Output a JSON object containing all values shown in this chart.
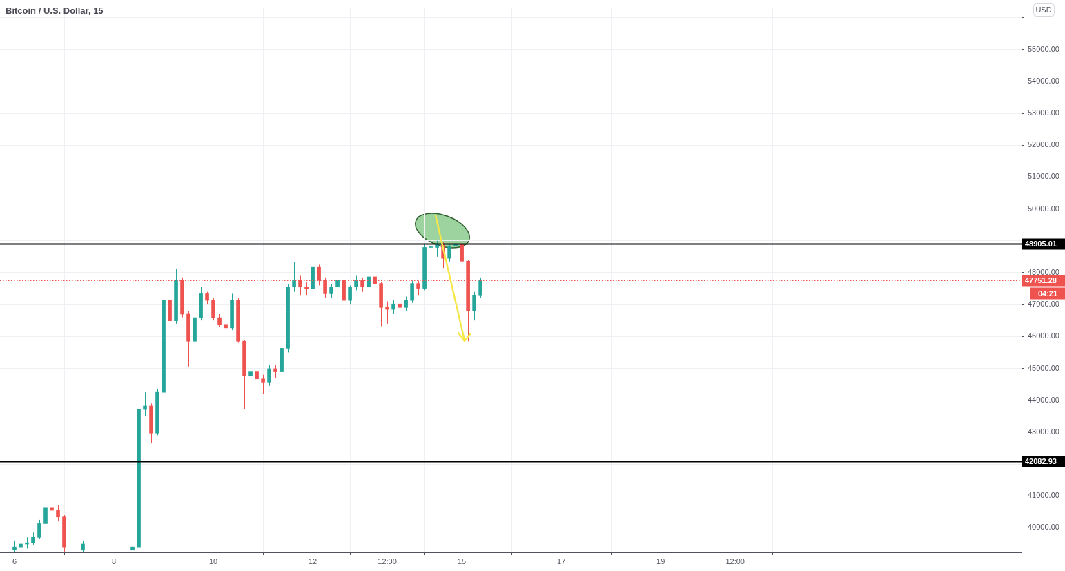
{
  "chart_data": {
    "type": "candlestick",
    "title": "Bitcoin / U.S. Dollar, 15",
    "x": [
      "--02-06T00:00",
      "--02-06T03:00",
      "--02-06T06:00",
      "--02-06T09:00",
      "--02-06T12:00",
      "--02-06T15:00",
      "--02-06T18:00",
      "--02-06T21:00",
      "--02-07T00:00",
      "--02-07T09:00",
      "--02-08T09:00",
      "--02-08T12:00",
      "--02-08T15:00",
      "--02-08T18:00",
      "--02-08T21:00",
      "--02-09T00:00",
      "--02-09T03:00",
      "--02-09T06:00",
      "--02-09T09:00",
      "--02-09T12:00",
      "--02-09T15:00",
      "--02-09T18:00",
      "--02-09T21:00",
      "--02-10T00:00",
      "--02-10T03:00",
      "--02-10T06:00",
      "--02-10T09:00",
      "--02-10T12:00",
      "--02-10T15:00",
      "--02-10T18:00",
      "--02-10T21:00",
      "--02-11T00:00",
      "--02-11T03:00",
      "--02-11T06:00",
      "--02-11T09:00",
      "--02-11T12:00",
      "--02-11T15:00",
      "--02-11T18:00",
      "--02-11T21:00",
      "--02-12T00:00",
      "--02-12T03:00",
      "--02-12T06:00",
      "--02-12T09:00",
      "--02-12T12:00",
      "--02-12T15:00",
      "--02-12T18:00",
      "--02-12T21:00",
      "--02-13T00:00",
      "--02-13T03:00",
      "--02-13T06:00",
      "--02-13T09:00",
      "--02-13T12:00",
      "--02-13T15:00",
      "--02-13T18:00",
      "--02-13T21:00",
      "--02-14T00:00",
      "--02-14T03:00",
      "--02-14T06:00",
      "--02-14T09:00",
      "--02-14T12:00",
      "--02-14T15:00",
      "--02-14T18:00",
      "--02-14T21:00",
      "--02-15T00:00",
      "--02-15T03:00",
      "--02-15T06:00",
      "--02-15T09:00"
    ],
    "ohlc": [
      [
        39320,
        39600,
        39250,
        39400
      ],
      [
        39400,
        39620,
        39300,
        39490
      ],
      [
        39490,
        39700,
        39350,
        39530
      ],
      [
        39530,
        39850,
        39450,
        39700
      ],
      [
        39700,
        40250,
        39650,
        40130
      ],
      [
        40130,
        41000,
        40050,
        40620
      ],
      [
        40620,
        40800,
        40400,
        40550
      ],
      [
        40550,
        40700,
        40200,
        40340
      ],
      [
        40340,
        40400,
        39250,
        39400
      ],
      [
        39300,
        39600,
        39250,
        39490
      ],
      [
        39300,
        39450,
        39250,
        39400
      ],
      [
        39400,
        44890,
        39270,
        43710
      ],
      [
        43710,
        44250,
        43500,
        43820
      ],
      [
        43820,
        43900,
        42650,
        42970
      ],
      [
        42970,
        44350,
        42900,
        44250
      ],
      [
        44250,
        47550,
        44150,
        47130
      ],
      [
        47130,
        47300,
        46300,
        46490
      ],
      [
        46490,
        48130,
        46400,
        47770
      ],
      [
        47770,
        47850,
        46600,
        46700
      ],
      [
        46700,
        46800,
        45060,
        45850
      ],
      [
        45850,
        46700,
        45750,
        46590
      ],
      [
        46590,
        47550,
        46500,
        47340
      ],
      [
        47340,
        47400,
        47000,
        47130
      ],
      [
        47130,
        47200,
        46500,
        46590
      ],
      [
        46590,
        46700,
        46300,
        46380
      ],
      [
        46380,
        46500,
        45700,
        46270
      ],
      [
        46270,
        47340,
        46200,
        47130
      ],
      [
        47130,
        47200,
        45800,
        45850
      ],
      [
        45850,
        45900,
        43710,
        44780
      ],
      [
        44780,
        45000,
        44500,
        44890
      ],
      [
        44890,
        45000,
        44500,
        44670
      ],
      [
        44670,
        44800,
        44200,
        44570
      ],
      [
        44570,
        45100,
        44450,
        44990
      ],
      [
        44990,
        45100,
        44700,
        44890
      ],
      [
        44890,
        45700,
        44800,
        45630
      ],
      [
        45630,
        47650,
        45500,
        47550
      ],
      [
        47550,
        48340,
        47400,
        47770
      ],
      [
        47770,
        47900,
        47300,
        47550
      ],
      [
        47550,
        47700,
        47300,
        47500
      ],
      [
        47500,
        48900,
        47400,
        48190
      ],
      [
        48190,
        48250,
        47600,
        47770
      ],
      [
        47770,
        47850,
        47200,
        47340
      ],
      [
        47340,
        47650,
        47200,
        47550
      ],
      [
        47550,
        47900,
        47450,
        47770
      ],
      [
        47770,
        47850,
        46320,
        47130
      ],
      [
        47130,
        47600,
        47000,
        47550
      ],
      [
        47550,
        47900,
        47450,
        47770
      ],
      [
        47770,
        47850,
        47400,
        47550
      ],
      [
        47550,
        47950,
        47450,
        47870
      ],
      [
        47870,
        47950,
        47500,
        47660
      ],
      [
        47660,
        47700,
        46320,
        46910
      ],
      [
        46910,
        47100,
        46400,
        46850
      ],
      [
        46850,
        47150,
        46700,
        47020
      ],
      [
        47020,
        47100,
        46700,
        46910
      ],
      [
        46910,
        47250,
        46800,
        47130
      ],
      [
        47130,
        47750,
        47050,
        47660
      ],
      [
        47660,
        47750,
        47300,
        47510
      ],
      [
        47510,
        48900,
        47450,
        48790
      ],
      [
        48790,
        49150,
        48500,
        48790
      ],
      [
        48790,
        49000,
        48500,
        48880
      ],
      [
        48880,
        48950,
        48150,
        48450
      ],
      [
        48450,
        48900,
        48350,
        48830
      ],
      [
        48830,
        49000,
        48600,
        48880
      ],
      [
        48880,
        48950,
        48200,
        48360
      ],
      [
        48360,
        48400,
        45850,
        46810
      ],
      [
        46810,
        47400,
        46500,
        47300
      ],
      [
        47300,
        47850,
        47200,
        47751.28
      ]
    ],
    "colors": [
      "#26a69a",
      "#26a69a",
      "#26a69a",
      "#26a69a",
      "#26a69a",
      "#26a69a",
      "#ef5350",
      "#ef5350",
      "#ef5350",
      "#26a69a",
      "#26a69a",
      "#26a69a",
      "#26a69a",
      "#ef5350",
      "#26a69a",
      "#26a69a",
      "#ef5350",
      "#26a69a",
      "#ef5350",
      "#ef5350",
      "#26a69a",
      "#26a69a",
      "#ef5350",
      "#ef5350",
      "#ef5350",
      "#ef5350",
      "#26a69a",
      "#ef5350",
      "#ef5350",
      "#26a69a",
      "#ef5350",
      "#ef5350",
      "#26a69a",
      "#ef5350",
      "#26a69a",
      "#26a69a",
      "#26a69a",
      "#ef5350",
      "#ef5350",
      "#26a69a",
      "#ef5350",
      "#ef5350",
      "#26a69a",
      "#26a69a",
      "#ef5350",
      "#26a69a",
      "#26a69a",
      "#ef5350",
      "#26a69a",
      "#ef5350",
      "#ef5350",
      "#ef5350",
      "#26a69a",
      "#ef5350",
      "#26a69a",
      "#26a69a",
      "#ef5350",
      "#26a69a",
      "#26a69a",
      "#26a69a",
      "#ef5350",
      "#26a69a",
      "#26a69a",
      "#ef5350",
      "#ef5350",
      "#26a69a",
      "#26a69a"
    ],
    "xlim": [
      "--02-05T17:00",
      "--02-26T06:15"
    ],
    "xticks": [
      {
        "value": "--02-06",
        "label": "6"
      },
      {
        "value": "--02-08",
        "label": "8"
      },
      {
        "value": "--02-10",
        "label": "10"
      },
      {
        "value": "--02-12",
        "label": "12"
      },
      {
        "value": "--02-13T12:00",
        "label": "12:00"
      },
      {
        "value": "--02-15",
        "label": "15"
      },
      {
        "value": "--02-17",
        "label": "17"
      },
      {
        "value": "--02-19",
        "label": "19"
      },
      {
        "value": "--02-20T12:00",
        "label": "12:00"
      }
    ],
    "ylim": [
      39230,
      56300
    ],
    "yticks": [
      {
        "value": 40000,
        "label": "40000.00"
      },
      {
        "value": 41000,
        "label": "41000.00"
      },
      {
        "value": 42000,
        "label": null
      },
      {
        "value": 43000,
        "label": "43000.00"
      },
      {
        "value": 44000,
        "label": "44000.00"
      },
      {
        "value": 45000,
        "label": "45000.00"
      },
      {
        "value": 46000,
        "label": "46000.00"
      },
      {
        "value": 47000,
        "label": "47000.00"
      },
      {
        "value": 48000,
        "label": "48000.00"
      },
      {
        "value": 49000,
        "label": null
      },
      {
        "value": 50000,
        "label": "50000.00"
      },
      {
        "value": 51000,
        "label": "51000.00"
      },
      {
        "value": 52000,
        "label": "52000.00"
      },
      {
        "value": 53000,
        "label": "53000.00"
      },
      {
        "value": 54000,
        "label": "54000.00"
      },
      {
        "value": 55000,
        "label": "55000.00"
      },
      {
        "value": 56000,
        "label": null
      }
    ],
    "ref_lines": [
      {
        "axis": "y",
        "value": 48905.01,
        "label": "48905.01",
        "color": "#000000",
        "line_style": "solid"
      },
      {
        "axis": "y",
        "value": 42082.93,
        "label": "42082.93",
        "color": "#000000",
        "line_style": "solid"
      },
      {
        "axis": "y",
        "value": 47751.28,
        "label": "47751.28",
        "color": "#ef5350",
        "line_style": "dotted"
      }
    ],
    "annotations": [
      "04:21",
      "USD"
    ],
    "grid": true
  }
}
